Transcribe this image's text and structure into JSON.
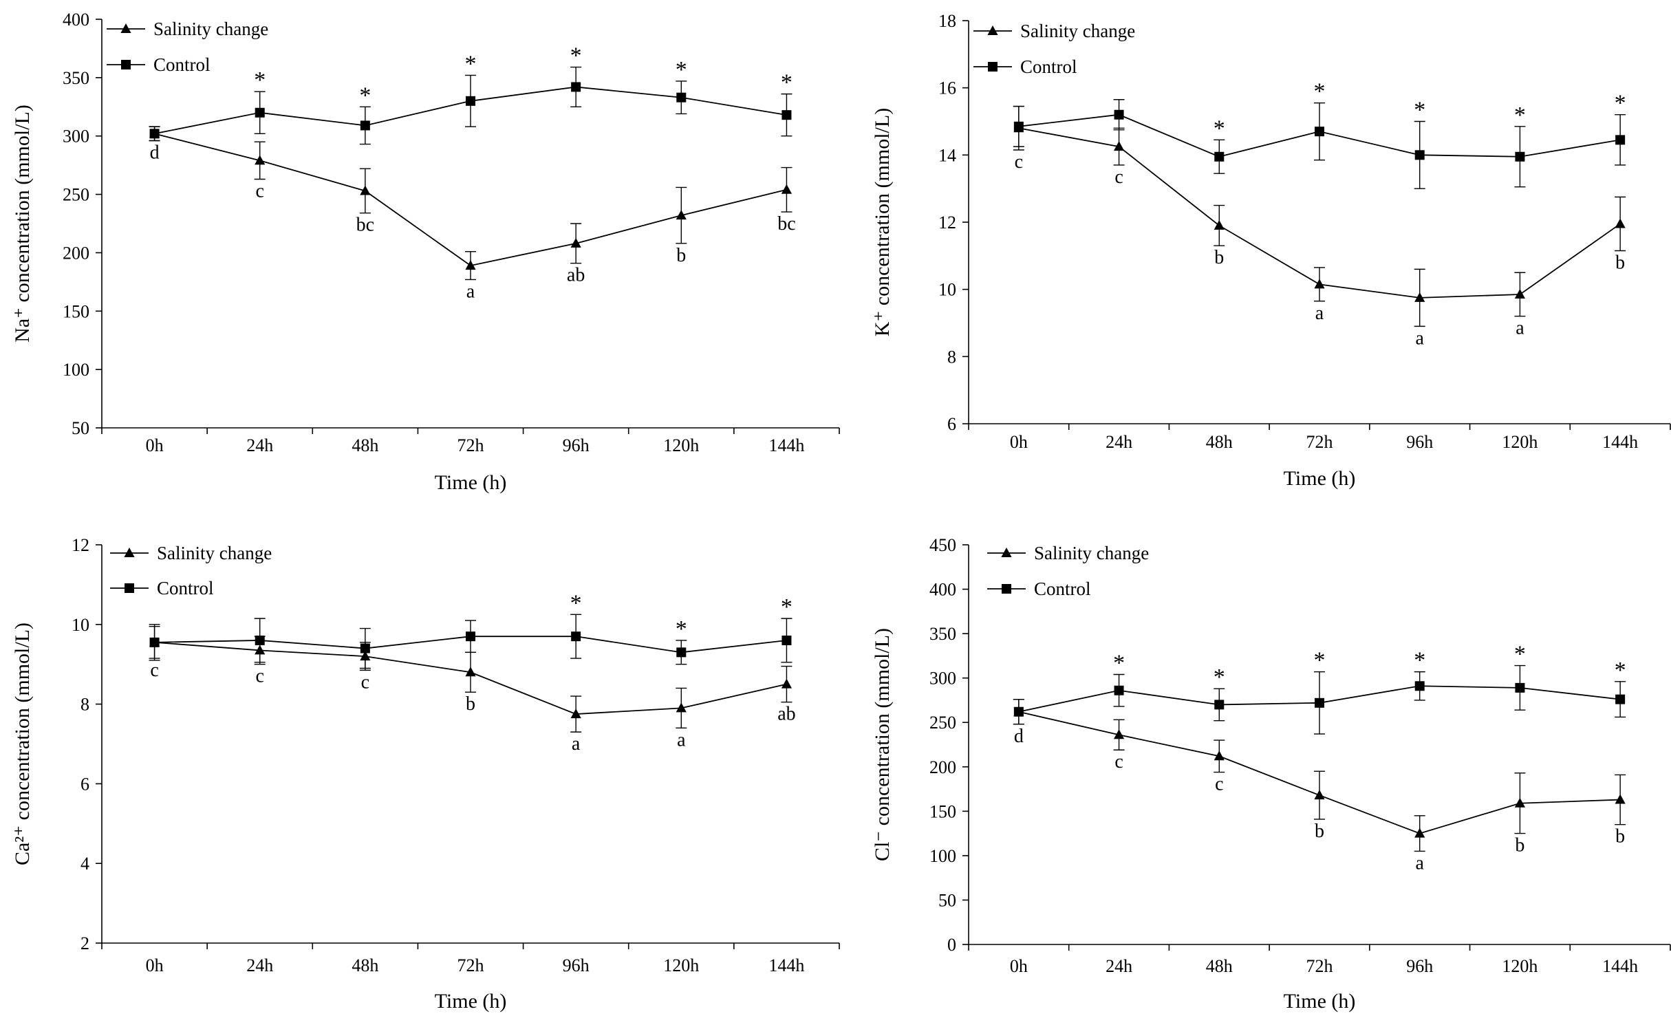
{
  "chart_data": [
    {
      "type": "line",
      "title": "",
      "xlabel": "Time (h)",
      "ylabel": "Na⁺ concentration (mmol/L)",
      "ylim": [
        50,
        400
      ],
      "yticks": [
        50,
        100,
        150,
        200,
        250,
        300,
        350,
        400
      ],
      "categories": [
        "0h",
        "24h",
        "48h",
        "72h",
        "96h",
        "120h",
        "144h"
      ],
      "legend_position": "top-left",
      "series": [
        {
          "name": "Salinity change",
          "marker": "triangle",
          "values": [
            302,
            279,
            253,
            189,
            208,
            232,
            254
          ],
          "errors": [
            6,
            16,
            19,
            12,
            17,
            24,
            19
          ],
          "letters": [
            "d",
            "c",
            "bc",
            "a",
            "ab",
            "b",
            "bc"
          ]
        },
        {
          "name": "Control",
          "marker": "square",
          "values": [
            302,
            320,
            309,
            330,
            342,
            333,
            318
          ],
          "errors": [
            6,
            18,
            16,
            22,
            17,
            14,
            18
          ],
          "significance": [
            "",
            "*",
            "*",
            "*",
            "*",
            "*",
            "*"
          ]
        }
      ]
    },
    {
      "type": "line",
      "title": "",
      "xlabel": "Time (h)",
      "ylabel": "K⁺ concentration (mmol/L)",
      "ylim": [
        6,
        18
      ],
      "yticks": [
        6,
        8,
        10,
        12,
        14,
        16,
        18
      ],
      "categories": [
        "0h",
        "24h",
        "48h",
        "72h",
        "96h",
        "120h",
        "144h"
      ],
      "legend_position": "top-left",
      "series": [
        {
          "name": "Salinity change",
          "marker": "triangle",
          "values": [
            14.8,
            14.25,
            11.9,
            10.15,
            9.75,
            9.85,
            11.95
          ],
          "errors": [
            0.65,
            0.55,
            0.6,
            0.5,
            0.85,
            0.65,
            0.8
          ],
          "letters": [
            "c",
            "c",
            "b",
            "a",
            "a",
            "a",
            "b"
          ]
        },
        {
          "name": "Control",
          "marker": "square",
          "values": [
            14.85,
            15.2,
            13.95,
            14.7,
            14.0,
            13.95,
            14.45
          ],
          "errors": [
            0.6,
            0.45,
            0.5,
            0.85,
            1.0,
            0.9,
            0.75
          ],
          "significance": [
            "",
            "",
            "*",
            "*",
            "*",
            "*",
            "*"
          ]
        }
      ]
    },
    {
      "type": "line",
      "title": "",
      "xlabel": "Time (h)",
      "ylabel": "Ca²⁺ concentration (mmol/L)",
      "ylim": [
        2,
        12
      ],
      "yticks": [
        2,
        4,
        6,
        8,
        10,
        12
      ],
      "categories": [
        "0h",
        "24h",
        "48h",
        "72h",
        "96h",
        "120h",
        "144h"
      ],
      "legend_position": "top-left",
      "series": [
        {
          "name": "Salinity change",
          "marker": "triangle",
          "values": [
            9.55,
            9.35,
            9.2,
            8.8,
            7.75,
            7.9,
            8.5
          ],
          "errors": [
            0.4,
            0.35,
            0.35,
            0.5,
            0.45,
            0.5,
            0.45
          ],
          "letters": [
            "c",
            "c",
            "c",
            "b",
            "a",
            "a",
            "ab"
          ]
        },
        {
          "name": "Control",
          "marker": "square",
          "values": [
            9.55,
            9.6,
            9.4,
            9.7,
            9.7,
            9.3,
            9.6
          ],
          "errors": [
            0.45,
            0.55,
            0.5,
            0.4,
            0.55,
            0.3,
            0.55
          ],
          "significance": [
            "",
            "",
            "",
            "",
            "*",
            "*",
            "*"
          ]
        }
      ]
    },
    {
      "type": "line",
      "title": "",
      "xlabel": "Time (h)",
      "ylabel": "Cl⁻ concentration (mmol/L)",
      "ylim": [
        0,
        450
      ],
      "yticks": [
        0,
        50,
        100,
        150,
        200,
        250,
        300,
        350,
        400,
        450
      ],
      "categories": [
        "0h",
        "24h",
        "48h",
        "72h",
        "96h",
        "120h",
        "144h"
      ],
      "legend_position": "top-left",
      "series": [
        {
          "name": "Salinity change",
          "marker": "triangle",
          "values": [
            262,
            236,
            212,
            168,
            125,
            159,
            163
          ],
          "errors": [
            14,
            17,
            18,
            27,
            20,
            34,
            28
          ],
          "letters": [
            "d",
            "c",
            "c",
            "b",
            "a",
            "b",
            "b"
          ]
        },
        {
          "name": "Control",
          "marker": "square",
          "values": [
            262,
            286,
            270,
            272,
            291,
            289,
            276
          ],
          "errors": [
            14,
            18,
            18,
            35,
            16,
            25,
            20
          ],
          "significance": [
            "",
            "*",
            "*",
            "*",
            "*",
            "*",
            "*"
          ]
        }
      ]
    }
  ]
}
